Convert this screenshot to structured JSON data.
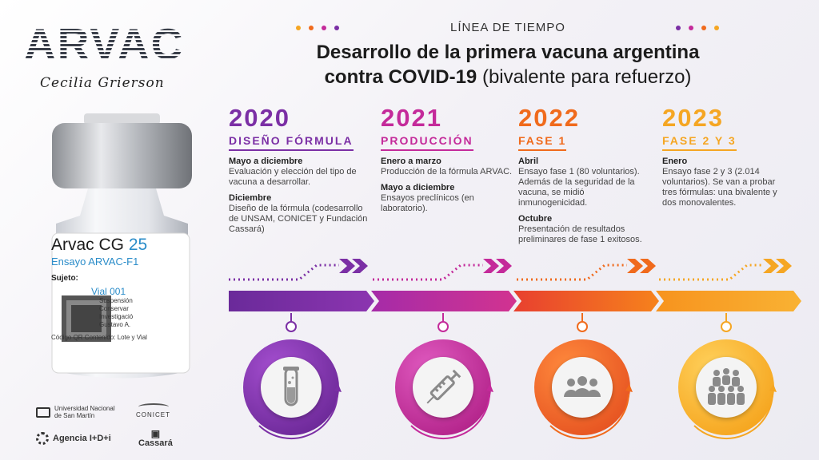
{
  "brand": {
    "logo": "ARVAC",
    "signature": "Cecilia Grierson"
  },
  "vial": {
    "label_title": "Arvac CG",
    "label_dose": "25",
    "label_sub": "Ensayo ARVAC-F1",
    "subject": "Sujeto:",
    "vial_no": "Vial 001",
    "text_lines": [
      "Suspensión",
      "Conservar",
      "Investigació",
      "Gustavo A."
    ],
    "qr_line": "Código QR Contenido: Lote y Vial"
  },
  "partners": {
    "unsam": "Universidad Nacional de San Martín",
    "conicet": "CONICET",
    "agencia": "Agencia I+D+i",
    "cassara": "Cassará"
  },
  "header": {
    "eyebrow": "LÍNEA DE TIEMPO",
    "title_line1": "Desarrollo de la primera vacuna argentina",
    "title_line2_bold": "contra COVID-19",
    "title_line2_light": " (bivalente para refuerzo)"
  },
  "colors": {
    "purple": "#7b2fa5",
    "magenta": "#c42a9a",
    "orange": "#f06a1c",
    "yellow": "#f5a623"
  },
  "timeline": [
    {
      "year": "2020",
      "phase": "DISEÑO FÓRMULA",
      "icon": "test-tube-icon",
      "entries": [
        {
          "head": "Mayo a diciembre",
          "body": "Evaluación y elección del tipo de vacuna a desarrollar."
        },
        {
          "head": "Diciembre",
          "body": "Diseño de la fórmula (codesarrollo de UNSAM, CONICET y Fundación Cassará)"
        }
      ]
    },
    {
      "year": "2021",
      "phase": "PRODUCCIÓN",
      "icon": "syringe-icon",
      "entries": [
        {
          "head": "Enero a marzo",
          "body": "Producción de la fórmula ARVAC."
        },
        {
          "head": "Mayo a diciembre",
          "body": "Ensayos preclínicos (en laboratorio)."
        }
      ]
    },
    {
      "year": "2022",
      "phase": "FASE 1",
      "icon": "people-icon",
      "entries": [
        {
          "head": "Abril",
          "body": "Ensayo fase 1 (80 voluntarios). Además de la seguridad de la vacuna, se midió inmunogenicidad."
        },
        {
          "head": "Octubre",
          "body": "Presentación de resultados preliminares de fase 1 exitosos."
        }
      ]
    },
    {
      "year": "2023",
      "phase": "FASE 2 Y 3",
      "icon": "crowd-icon",
      "entries": [
        {
          "head": "Enero",
          "body": "Ensayo fase 2 y 3 (2.014 voluntarios). Se van a probar tres fórmulas: una bivalente y dos monovalentes."
        }
      ]
    }
  ]
}
